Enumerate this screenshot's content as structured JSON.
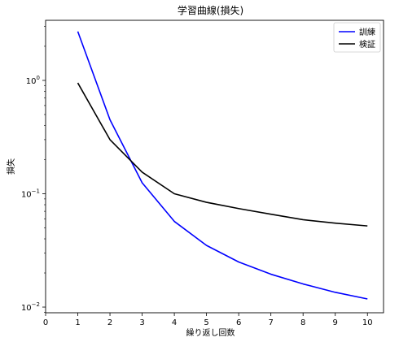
{
  "chart_data": {
    "type": "line",
    "title": "学習曲線(損失)",
    "xlabel": "繰り返し回数",
    "ylabel": "損失",
    "xlim": [
      0,
      10.5
    ],
    "ylim_log10": [
      -2.05,
      0.53
    ],
    "y_scale": "log",
    "x_ticks": [
      0,
      1,
      2,
      3,
      4,
      5,
      6,
      7,
      8,
      9,
      10
    ],
    "y_ticks": [
      {
        "value": 1,
        "base": "10",
        "exp": "0"
      },
      {
        "value": 0.1,
        "base": "10",
        "exp": "−1"
      },
      {
        "value": 0.01,
        "base": "10",
        "exp": "−2"
      }
    ],
    "grid": false,
    "legend_position": "top-right",
    "x": [
      1,
      2,
      3,
      4,
      5,
      6,
      7,
      8,
      9,
      10
    ],
    "series": [
      {
        "name": "訓練",
        "color": "#0000ff",
        "values": [
          2.7,
          0.45,
          0.125,
          0.057,
          0.035,
          0.025,
          0.0195,
          0.016,
          0.0135,
          0.0118
        ]
      },
      {
        "name": "検証",
        "color": "#000000",
        "values": [
          0.95,
          0.3,
          0.155,
          0.1,
          0.084,
          0.074,
          0.066,
          0.059,
          0.055,
          0.052
        ]
      }
    ]
  }
}
